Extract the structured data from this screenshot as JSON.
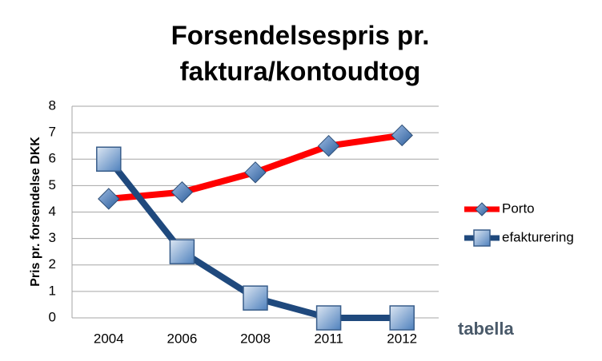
{
  "chart_data": {
    "type": "line",
    "title": [
      "Forsendelsespris pr.",
      "faktura/kontoudtog"
    ],
    "y_label": "Pris pr. forsendelse DKK",
    "categories": [
      "2004",
      "2006",
      "2008",
      "2011",
      "2012"
    ],
    "series": [
      {
        "name": "Porto",
        "color": "#ff0000",
        "marker": "diamond",
        "marker_color": "#4f81bd",
        "values": [
          4.5,
          4.75,
          5.5,
          6.5,
          6.9
        ]
      },
      {
        "name": "efakturering",
        "color": "#1f497d",
        "marker": "square",
        "marker_color": "#95b3d7",
        "values": [
          6,
          2.5,
          0.75,
          0,
          0
        ]
      }
    ],
    "ylim": [
      0,
      8
    ],
    "yticks": [
      0,
      1,
      2,
      3,
      4,
      5,
      6,
      7,
      8
    ],
    "grid": true,
    "legend": "right",
    "logo": "tabella"
  }
}
